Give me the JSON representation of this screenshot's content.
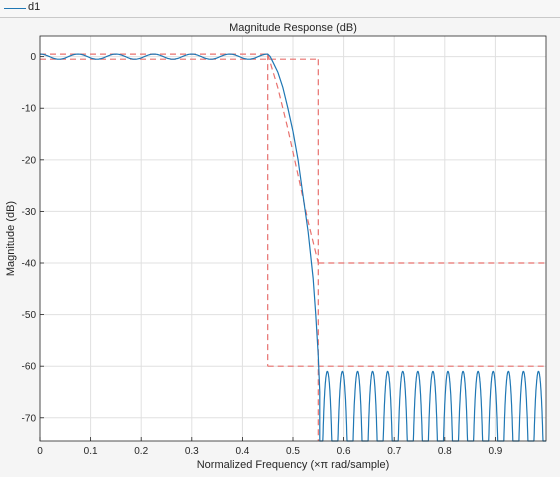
{
  "legend": {
    "items": [
      {
        "label": "d1",
        "color": "#1f77b4"
      }
    ]
  },
  "chart_data": {
    "type": "line",
    "title": "Magnitude Response (dB)",
    "xlabel": "Normalized Frequency (×π rad/sample)",
    "ylabel": "Magnitude (dB)",
    "xlim": [
      0,
      1
    ],
    "ylim": [
      -74.5,
      4
    ],
    "grid": true,
    "x_ticks": [
      0,
      0.1,
      0.2,
      0.3,
      0.4,
      0.5,
      0.6,
      0.7,
      0.8,
      0.9
    ],
    "x_tick_labels": [
      "0",
      "0.1",
      "0.2",
      "0.3",
      "0.4",
      "0.5",
      "0.6",
      "0.7",
      "0.8",
      "0.9"
    ],
    "y_ticks": [
      0,
      -10,
      -20,
      -30,
      -40,
      -50,
      -60,
      -70
    ],
    "y_tick_labels": [
      "0",
      "-10",
      "-20",
      "-30",
      "-40",
      "-50",
      "-60",
      "-70"
    ],
    "colors": {
      "response": "#1f77b4",
      "mask": "#e8716e",
      "grid": "#e0e0e0",
      "axes_bg": "#ffffff"
    },
    "series": [
      {
        "role": "response",
        "description": "d1 lowpass equiripple response",
        "passband": {
          "x": [
            0,
            0.45
          ],
          "ripple_db": 0.5,
          "ripple_count": 6
        },
        "transition": {
          "x": [
            0.45,
            0.455,
            0.46,
            0.47,
            0.48,
            0.49,
            0.5,
            0.51,
            0.52,
            0.53,
            0.54,
            0.545,
            0.55,
            0.553
          ],
          "y": [
            0.5,
            0,
            -1,
            -3,
            -6,
            -10,
            -14.5,
            -20,
            -27,
            -34,
            -43,
            -50,
            -58,
            -65
          ]
        },
        "stopband": {
          "x": [
            0.553,
            1.0
          ],
          "peak_db": -61,
          "null_db": -74.5,
          "lobe_count": 15
        }
      },
      {
        "role": "mask",
        "description": "specification mask (dashed)",
        "segments": [
          {
            "x": [
              0,
              0.45
            ],
            "y": [
              0.5,
              0.5
            ]
          },
          {
            "x": [
              0,
              0.55
            ],
            "y": [
              -0.5,
              -0.5
            ]
          },
          {
            "x": [
              0.55,
              0.55
            ],
            "y": [
              -0.5,
              -74.5
            ]
          },
          {
            "x": [
              0.45,
              0.45
            ],
            "y": [
              0.5,
              -60
            ]
          },
          {
            "x": [
              0.45,
              1.0
            ],
            "y": [
              -60,
              -60
            ]
          },
          {
            "x": [
              0.55,
              1.0
            ],
            "y": [
              -40,
              -40
            ]
          },
          {
            "x": [
              0.45,
              0.47,
              0.49,
              0.51,
              0.53,
              0.55
            ],
            "y": [
              0.5,
              -6,
              -14,
              -23,
              -32,
              -40
            ]
          }
        ]
      }
    ]
  }
}
